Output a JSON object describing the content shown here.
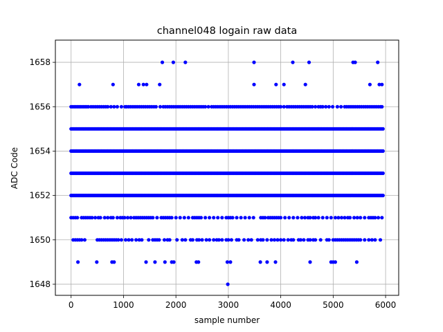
{
  "chart_data": {
    "type": "scatter",
    "title": "channel048 logain raw data",
    "xlabel": "sample number",
    "ylabel": "ADC Code",
    "xlim": [
      -300,
      6250
    ],
    "ylim": [
      1647.5,
      1659
    ],
    "xticks": [
      0,
      1000,
      2000,
      3000,
      4000,
      5000,
      6000
    ],
    "yticks": [
      1648,
      1650,
      1652,
      1654,
      1656,
      1658
    ],
    "xtick_labels": [
      "0",
      "1000",
      "2000",
      "3000",
      "4000",
      "5000",
      "6000"
    ],
    "ytick_labels": [
      "1648",
      "1650",
      "1652",
      "1654",
      "1656",
      "1658"
    ],
    "grid": true,
    "marker_color": "#0000ff",
    "n_samples": 5950,
    "series": [
      {
        "y": 1653,
        "x_dense": [
          [
            0,
            5950
          ]
        ]
      },
      {
        "y": 1654,
        "x_dense": [
          [
            0,
            5950
          ]
        ]
      },
      {
        "y": 1655,
        "x_dense": [
          [
            0,
            5950
          ]
        ]
      },
      {
        "y": 1652,
        "x_dense": [
          [
            0,
            5950
          ]
        ]
      },
      {
        "y": 1656,
        "x": [
          0,
          30,
          60,
          90,
          120,
          150,
          180,
          210,
          240,
          270,
          300,
          330,
          380,
          420,
          460,
          500,
          540,
          580,
          620,
          660,
          700,
          760,
          820,
          880,
          960,
          1030,
          1060,
          1100,
          1140,
          1180,
          1220,
          1260,
          1300,
          1340,
          1380,
          1420,
          1460,
          1500,
          1540,
          1580,
          1620,
          1700,
          1760,
          1800,
          1840,
          1880,
          1920,
          1960,
          2000,
          2040,
          2080,
          2120,
          2160,
          2200,
          2240,
          2280,
          2320,
          2360,
          2400,
          2440,
          2480,
          2520,
          2560,
          2620,
          2680,
          2720,
          2760,
          2800,
          2840,
          2880,
          2920,
          2960,
          3000,
          3040,
          3080,
          3120,
          3160,
          3200,
          3240,
          3280,
          3320,
          3360,
          3400,
          3440,
          3480,
          3520,
          3560,
          3600,
          3640,
          3680,
          3720,
          3760,
          3800,
          3840,
          3880,
          3920,
          3960,
          4000,
          4060,
          4120,
          4160,
          4200,
          4240,
          4280,
          4320,
          4360,
          4400,
          4440,
          4480,
          4520,
          4560,
          4600,
          4660,
          4720,
          4760,
          4800,
          4860,
          4920,
          4990,
          5080,
          5150,
          5220,
          5260,
          5300,
          5340,
          5380,
          5420,
          5460,
          5500,
          5540,
          5580,
          5620,
          5660,
          5700,
          5740,
          5780,
          5820,
          5860,
          5900,
          5930
        ]
      },
      {
        "y": 1651,
        "x": [
          0,
          40,
          80,
          120,
          200,
          240,
          280,
          320,
          360,
          400,
          460,
          520,
          560,
          640,
          700,
          760,
          800,
          880,
          940,
          980,
          1020,
          1080,
          1140,
          1200,
          1240,
          1280,
          1320,
          1360,
          1400,
          1440,
          1480,
          1520,
          1560,
          1640,
          1720,
          1760,
          1800,
          1840,
          1880,
          1920,
          2000,
          2080,
          2160,
          2240,
          2320,
          2360,
          2400,
          2440,
          2480,
          2560,
          2640,
          2720,
          2800,
          2880,
          2960,
          3000,
          3040,
          3080,
          3160,
          3240,
          3320,
          3400,
          3480,
          3620,
          3660,
          3700,
          3760,
          3800,
          3840,
          3880,
          3920,
          3960,
          4000,
          4080,
          4160,
          4240,
          4320,
          4400,
          4460,
          4520,
          4560,
          4620,
          4660,
          4720,
          4800,
          4880,
          4960,
          5040,
          5100,
          5160,
          5220,
          5280,
          5320,
          5400,
          5460,
          5520,
          5600,
          5680,
          5720,
          5760,
          5800,
          5860,
          5930
        ]
      },
      {
        "y": 1650,
        "x": [
          40,
          80,
          120,
          160,
          200,
          260,
          500,
          540,
          580,
          620,
          660,
          700,
          740,
          780,
          820,
          860,
          900,
          960,
          1040,
          1100,
          1160,
          1240,
          1300,
          1350,
          1480,
          1560,
          1600,
          1640,
          1680,
          1780,
          1840,
          1880,
          2020,
          2120,
          2180,
          2280,
          2320,
          2400,
          2440,
          2500,
          2580,
          2640,
          2720,
          2780,
          2820,
          2880,
          2960,
          3000,
          3060,
          3160,
          3200,
          3300,
          3380,
          3440,
          3560,
          3620,
          3660,
          3740,
          3820,
          3880,
          3940,
          4000,
          4060,
          4140,
          4200,
          4240,
          4340,
          4380,
          4440,
          4520,
          4560,
          4620,
          4660,
          4760,
          4880,
          4920,
          5000,
          5040,
          5080,
          5120,
          5160,
          5200,
          5240,
          5280,
          5320,
          5360,
          5400,
          5440,
          5480,
          5520,
          5600,
          5680,
          5740,
          5800,
          5900
        ]
      },
      {
        "y": 1649,
        "x": [
          130,
          490,
          780,
          820,
          1430,
          1600,
          1790,
          1920,
          1960,
          2390,
          2430,
          2980,
          3040,
          3610,
          3740,
          3900,
          4560,
          4960,
          5000,
          5040,
          5450
        ]
      },
      {
        "y": 1657,
        "x": [
          160,
          800,
          1290,
          1380,
          1440,
          1690,
          3490,
          3910,
          4060,
          4470,
          5700,
          5880,
          5930
        ]
      },
      {
        "y": 1658,
        "x": [
          1740,
          1950,
          2180,
          3490,
          4230,
          4540,
          5380,
          5420,
          5850
        ]
      },
      {
        "y": 1648,
        "x": [
          2990
        ]
      }
    ]
  }
}
